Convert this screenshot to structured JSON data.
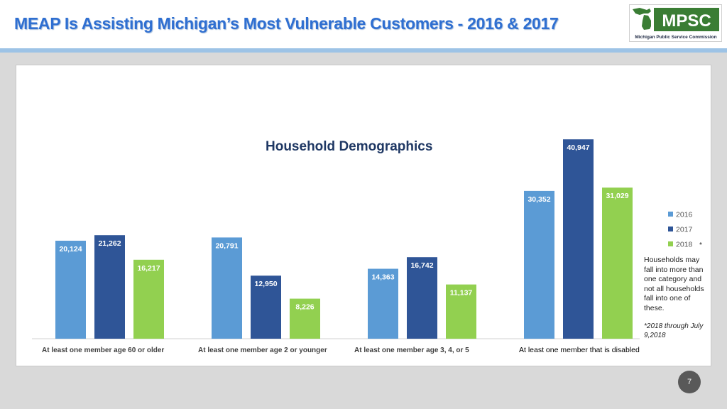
{
  "header": {
    "title": "MEAP Is Assisting Michigan’s Most Vulnerable Customers - 2016 & 2017",
    "logo": {
      "word": "MPSC",
      "subtitle": "Michigan Public Service Commission",
      "icon": "michigan-map-icon"
    }
  },
  "chart_data": {
    "type": "bar",
    "title": "Household Demographics",
    "categories": [
      "At least one member age 60 or older",
      "At least one member age 2 or younger",
      "At least one member age 3, 4, or 5",
      "At least one member that is disabled"
    ],
    "series": [
      {
        "name": "2016",
        "values": [
          20124,
          20791,
          14363,
          30352
        ],
        "labels": [
          "20,124",
          "20,791",
          "14,363",
          "30,352"
        ],
        "color": "#5b9bd5"
      },
      {
        "name": "2017",
        "values": [
          21262,
          12950,
          16742,
          40947
        ],
        "labels": [
          "21,262",
          "12,950",
          "16,742",
          "40,947"
        ],
        "color": "#2f5597"
      },
      {
        "name": "2018",
        "values": [
          16217,
          8226,
          11137,
          31029
        ],
        "labels": [
          "16,217",
          "8,226",
          "11,137",
          "31,029"
        ],
        "color": "#92d050"
      }
    ],
    "ylim": [
      0,
      42000
    ],
    "grid": false,
    "legend": "right"
  },
  "notes": {
    "asterisk": "*",
    "households": "Households may fall into more than one category and not all households fall into one of these.",
    "footnote": "*2018 through July 9,2018"
  },
  "page_number": "7"
}
